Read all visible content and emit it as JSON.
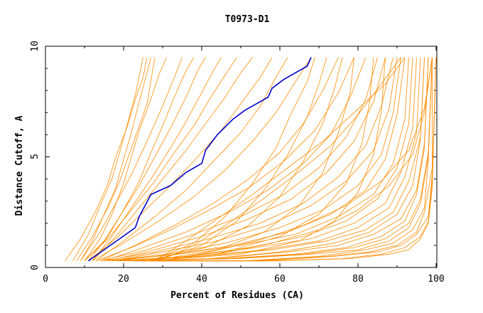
{
  "chart_data": {
    "type": "line",
    "title": "T0973-D1",
    "xlabel": "Percent of Residues (CA)",
    "ylabel": "Distance Cutoff, A",
    "xlim": [
      0,
      100
    ],
    "ylim": [
      0,
      10
    ],
    "x_ticks": [
      "0",
      "20",
      "40",
      "60",
      "80",
      "100"
    ],
    "y_ticks": [
      "0",
      "5",
      "10"
    ],
    "grid": false,
    "legend": "none",
    "colors": {
      "highlight": "#0000cc",
      "others": "#ff8c00"
    },
    "highlighted_series": {
      "x": [
        11,
        15,
        19,
        23,
        24,
        27,
        32,
        36,
        40,
        41,
        44,
        48,
        51,
        54,
        57,
        58,
        61,
        64,
        67,
        68
      ],
      "y": [
        0.3,
        0.8,
        1.3,
        1.8,
        2.3,
        3.3,
        3.7,
        4.3,
        4.7,
        5.3,
        6.0,
        6.7,
        7.1,
        7.4,
        7.7,
        8.1,
        8.5,
        8.8,
        9.1,
        9.5
      ]
    },
    "background_series": [
      {
        "x": [
          5,
          9,
          13,
          16,
          18,
          21,
          23,
          25,
          26
        ],
        "y": [
          0.3,
          1.3,
          2.6,
          3.8,
          5.0,
          6.4,
          7.6,
          8.6,
          9.5
        ]
      },
      {
        "x": [
          7,
          11,
          14,
          17,
          19,
          21,
          23,
          25
        ],
        "y": [
          0.3,
          1.5,
          2.8,
          4.0,
          5.2,
          6.5,
          7.8,
          9.5
        ]
      },
      {
        "x": [
          9,
          12,
          15,
          18,
          20,
          22,
          24,
          26,
          27
        ],
        "y": [
          0.3,
          1.2,
          2.4,
          3.6,
          4.9,
          6.1,
          7.5,
          8.8,
          9.5
        ]
      },
      {
        "x": [
          8,
          12,
          16,
          19,
          22,
          26,
          28
        ],
        "y": [
          0.3,
          1.4,
          2.7,
          3.9,
          5.4,
          7.4,
          9.5
        ]
      },
      {
        "x": [
          10,
          14,
          17,
          20,
          22,
          24,
          27,
          29,
          31
        ],
        "y": [
          0.3,
          1.3,
          2.4,
          3.8,
          5.0,
          6.2,
          7.6,
          8.7,
          9.5
        ]
      },
      {
        "x": [
          9,
          14,
          18,
          22,
          26,
          30,
          33,
          35
        ],
        "y": [
          0.3,
          1.6,
          2.9,
          4.2,
          5.7,
          7.3,
          8.6,
          9.5
        ]
      },
      {
        "x": [
          11,
          16,
          20,
          24,
          27,
          30,
          33,
          36,
          38
        ],
        "y": [
          0.3,
          1.4,
          2.6,
          3.9,
          5.2,
          6.4,
          7.7,
          8.9,
          9.5
        ]
      },
      {
        "x": [
          10,
          15,
          19,
          24,
          28,
          32,
          36,
          39,
          41
        ],
        "y": [
          0.3,
          1.2,
          2.3,
          3.7,
          5.0,
          6.3,
          7.7,
          8.9,
          9.5
        ]
      },
      {
        "x": [
          12,
          17,
          22,
          27,
          32,
          36,
          40,
          43,
          45
        ],
        "y": [
          0.3,
          1.4,
          2.7,
          4.0,
          5.4,
          6.6,
          7.9,
          8.9,
          9.5
        ]
      },
      {
        "x": [
          10,
          16,
          22,
          28,
          33,
          38,
          42,
          46,
          49
        ],
        "y": [
          0.3,
          1.3,
          2.6,
          3.9,
          5.2,
          6.4,
          7.6,
          8.7,
          9.5
        ]
      },
      {
        "x": [
          12,
          18,
          24,
          30,
          36,
          41,
          46,
          50,
          53
        ],
        "y": [
          0.3,
          1.4,
          2.7,
          4.0,
          5.3,
          6.5,
          7.7,
          8.8,
          9.5
        ]
      },
      {
        "x": [
          11,
          18,
          25,
          32,
          39,
          45,
          50,
          55,
          58
        ],
        "y": [
          0.3,
          1.3,
          2.5,
          3.7,
          5.0,
          6.2,
          7.4,
          8.6,
          9.5
        ]
      },
      {
        "x": [
          13,
          20,
          28,
          36,
          43,
          50,
          55,
          59,
          62
        ],
        "y": [
          0.3,
          1.2,
          2.3,
          3.5,
          4.8,
          6.1,
          7.3,
          8.6,
          9.5
        ]
      },
      {
        "x": [
          12,
          20,
          29,
          38,
          46,
          53,
          59,
          64,
          68
        ],
        "y": [
          0.3,
          1.1,
          2.1,
          3.2,
          4.4,
          5.7,
          7.0,
          8.4,
          9.5
        ]
      },
      {
        "x": [
          14,
          23,
          33,
          43,
          52,
          60,
          66,
          71,
          75
        ],
        "y": [
          0.3,
          1.0,
          1.9,
          2.9,
          4.0,
          5.2,
          6.5,
          8.0,
          9.5
        ]
      },
      {
        "x": [
          13,
          22,
          32,
          42,
          52,
          61,
          69,
          75,
          79
        ],
        "y": [
          0.3,
          0.9,
          1.7,
          2.6,
          3.6,
          4.8,
          6.2,
          7.9,
          9.5
        ]
      },
      {
        "x": [
          15,
          25,
          36,
          47,
          57,
          66,
          73,
          78,
          82
        ],
        "y": [
          0.3,
          0.9,
          1.6,
          2.5,
          3.5,
          4.7,
          6.0,
          7.7,
          9.5
        ]
      },
      {
        "x": [
          14,
          26,
          38,
          50,
          61,
          70,
          77,
          82,
          85
        ],
        "y": [
          0.3,
          0.8,
          1.5,
          2.3,
          3.3,
          4.5,
          5.9,
          7.6,
          9.5
        ]
      },
      {
        "x": [
          16,
          28,
          40,
          52,
          63,
          72,
          79,
          84,
          87
        ],
        "y": [
          0.3,
          0.8,
          1.4,
          2.2,
          3.1,
          4.3,
          5.7,
          7.5,
          9.5
        ]
      },
      {
        "x": [
          15,
          28,
          42,
          55,
          66,
          75,
          82,
          86,
          89
        ],
        "y": [
          0.3,
          0.7,
          1.3,
          2.0,
          2.9,
          4.1,
          5.5,
          7.3,
          9.5
        ]
      },
      {
        "x": [
          17,
          30,
          44,
          57,
          68,
          77,
          84,
          88,
          90
        ],
        "y": [
          0.3,
          0.7,
          1.2,
          1.9,
          2.8,
          3.9,
          5.3,
          7.2,
          9.5
        ]
      },
      {
        "x": [
          16,
          31,
          46,
          60,
          71,
          80,
          86,
          89,
          91
        ],
        "y": [
          0.3,
          0.6,
          1.1,
          1.8,
          2.6,
          3.7,
          5.1,
          7.0,
          9.5
        ]
      },
      {
        "x": [
          18,
          33,
          48,
          62,
          73,
          82,
          87,
          90,
          92
        ],
        "y": [
          0.3,
          0.6,
          1.0,
          1.6,
          2.4,
          3.5,
          4.9,
          6.9,
          9.5
        ]
      },
      {
        "x": [
          17,
          34,
          50,
          64,
          75,
          84,
          89,
          92,
          93
        ],
        "y": [
          0.3,
          0.6,
          1.0,
          1.5,
          2.3,
          3.3,
          4.7,
          6.7,
          9.5
        ]
      },
      {
        "x": [
          19,
          36,
          52,
          66,
          77,
          85,
          90,
          93,
          94
        ],
        "y": [
          0.3,
          0.5,
          0.9,
          1.4,
          2.1,
          3.1,
          4.5,
          6.5,
          9.5
        ]
      },
      {
        "x": [
          18,
          37,
          54,
          68,
          79,
          87,
          91,
          94,
          95
        ],
        "y": [
          0.3,
          0.5,
          0.9,
          1.3,
          2.0,
          2.9,
          4.3,
          6.3,
          9.5
        ]
      },
      {
        "x": [
          20,
          39,
          56,
          70,
          80,
          88,
          92,
          95,
          96
        ],
        "y": [
          0.3,
          0.5,
          0.8,
          1.2,
          1.8,
          2.7,
          4.1,
          6.1,
          9.5
        ]
      },
      {
        "x": [
          19,
          40,
          58,
          72,
          82,
          89,
          93,
          96,
          97
        ],
        "y": [
          0.3,
          0.5,
          0.8,
          1.2,
          1.7,
          2.5,
          3.9,
          5.9,
          9.5
        ]
      },
      {
        "x": [
          21,
          42,
          60,
          74,
          83,
          90,
          94,
          96,
          97
        ],
        "y": [
          0.3,
          0.4,
          0.7,
          1.1,
          1.6,
          2.4,
          3.7,
          5.8,
          9.5
        ]
      },
      {
        "x": [
          20,
          43,
          62,
          75,
          84,
          91,
          95,
          97,
          98
        ],
        "y": [
          0.3,
          0.4,
          0.7,
          1.0,
          1.5,
          2.2,
          3.5,
          5.6,
          9.5
        ]
      },
      {
        "x": [
          22,
          45,
          64,
          77,
          86,
          92,
          95,
          97,
          98
        ],
        "y": [
          0.3,
          0.4,
          0.6,
          0.9,
          1.4,
          2.1,
          3.3,
          5.4,
          9.5
        ]
      },
      {
        "x": [
          21,
          47,
          66,
          79,
          87,
          93,
          96,
          98,
          99
        ],
        "y": [
          0.3,
          0.4,
          0.6,
          0.9,
          1.3,
          2.0,
          3.1,
          5.2,
          9.5
        ]
      },
      {
        "x": [
          23,
          49,
          68,
          80,
          88,
          93,
          96,
          98,
          99
        ],
        "y": [
          0.3,
          0.4,
          0.6,
          0.8,
          1.2,
          1.8,
          2.9,
          5.0,
          9.5
        ]
      },
      {
        "x": [
          22,
          51,
          70,
          82,
          89,
          94,
          97,
          98,
          99
        ],
        "y": [
          0.3,
          0.3,
          0.5,
          0.8,
          1.1,
          1.7,
          2.7,
          4.8,
          9.5
        ]
      },
      {
        "x": [
          24,
          53,
          72,
          83,
          90,
          95,
          97,
          99,
          99
        ],
        "y": [
          0.3,
          0.3,
          0.5,
          0.7,
          1.0,
          1.6,
          2.5,
          4.5,
          9.5
        ]
      },
      {
        "x": [
          23,
          55,
          74,
          85,
          91,
          95,
          98,
          99,
          100
        ],
        "y": [
          0.3,
          0.3,
          0.5,
          0.7,
          1.0,
          1.5,
          2.3,
          4.2,
          9.5
        ]
      },
      {
        "x": [
          25,
          57,
          76,
          86,
          92,
          96,
          98,
          99,
          100
        ],
        "y": [
          0.3,
          0.3,
          0.4,
          0.6,
          0.9,
          1.4,
          2.1,
          3.9,
          9.5
        ]
      },
      {
        "x": [
          24,
          59,
          78,
          88,
          93,
          96,
          98,
          99,
          100
        ],
        "y": [
          0.3,
          0.3,
          0.4,
          0.6,
          0.8,
          1.3,
          2.0,
          3.6,
          9.5
        ]
      },
      {
        "x": [
          26,
          50,
          65,
          74,
          80,
          84,
          86,
          87
        ],
        "y": [
          0.3,
          0.6,
          1.2,
          2.1,
          3.4,
          5.1,
          7.1,
          9.5
        ]
      },
      {
        "x": [
          25,
          46,
          60,
          70,
          77,
          81,
          83,
          84
        ],
        "y": [
          0.3,
          0.7,
          1.4,
          2.4,
          3.8,
          5.6,
          7.5,
          9.5
        ]
      },
      {
        "x": [
          27,
          44,
          56,
          65,
          71,
          75,
          78,
          79
        ],
        "y": [
          0.3,
          0.8,
          1.6,
          2.8,
          4.3,
          6.1,
          7.9,
          9.5
        ]
      },
      {
        "x": [
          26,
          41,
          52,
          60,
          66,
          71,
          74,
          76
        ],
        "y": [
          0.3,
          0.9,
          1.9,
          3.2,
          4.8,
          6.5,
          8.1,
          9.5
        ]
      },
      {
        "x": [
          28,
          40,
          49,
          56,
          62,
          67,
          70,
          72
        ],
        "y": [
          0.3,
          1.0,
          2.1,
          3.5,
          5.1,
          6.8,
          8.3,
          9.5
        ]
      },
      {
        "x": [
          27,
          38,
          46,
          53,
          59,
          63,
          67,
          69
        ],
        "y": [
          0.3,
          1.1,
          2.3,
          3.8,
          5.4,
          7.0,
          8.4,
          9.5
        ]
      },
      {
        "x": [
          29,
          38,
          46,
          55,
          64,
          73,
          80,
          86,
          91
        ],
        "y": [
          0.3,
          1.0,
          1.9,
          3.0,
          4.2,
          5.5,
          6.9,
          8.3,
          9.5
        ]
      },
      {
        "x": [
          28,
          36,
          44,
          53,
          62,
          71,
          79,
          87,
          92
        ],
        "y": [
          0.3,
          1.2,
          2.2,
          3.3,
          4.5,
          5.7,
          7.0,
          8.3,
          9.5
        ]
      },
      {
        "x": [
          30,
          42,
          54,
          66,
          77,
          86,
          93,
          97,
          99
        ],
        "y": [
          0.3,
          0.7,
          1.2,
          1.9,
          2.8,
          3.9,
          5.3,
          7.2,
          9.5
        ]
      },
      {
        "x": [
          29,
          44,
          58,
          70,
          80,
          88,
          94,
          97,
          99
        ],
        "y": [
          0.3,
          0.6,
          1.1,
          1.7,
          2.6,
          3.7,
          5.1,
          7.0,
          9.5
        ]
      }
    ]
  }
}
